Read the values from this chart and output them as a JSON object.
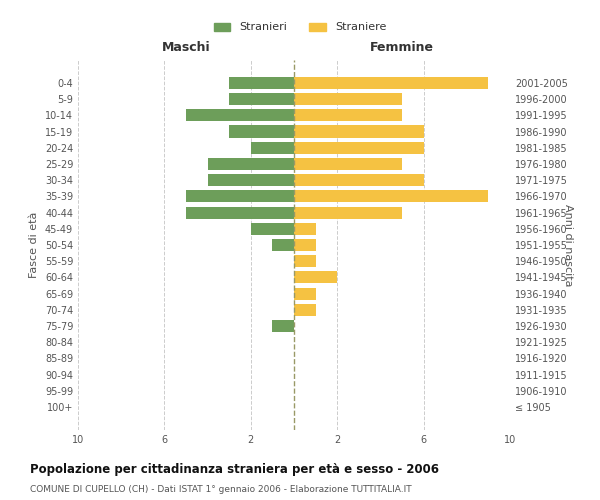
{
  "age_groups": [
    "100+",
    "95-99",
    "90-94",
    "85-89",
    "80-84",
    "75-79",
    "70-74",
    "65-69",
    "60-64",
    "55-59",
    "50-54",
    "45-49",
    "40-44",
    "35-39",
    "30-34",
    "25-29",
    "20-24",
    "15-19",
    "10-14",
    "5-9",
    "0-4"
  ],
  "birth_years": [
    "≤ 1905",
    "1906-1910",
    "1911-1915",
    "1916-1920",
    "1921-1925",
    "1926-1930",
    "1931-1935",
    "1936-1940",
    "1941-1945",
    "1946-1950",
    "1951-1955",
    "1956-1960",
    "1961-1965",
    "1966-1970",
    "1971-1975",
    "1976-1980",
    "1981-1985",
    "1986-1990",
    "1991-1995",
    "1996-2000",
    "2001-2005"
  ],
  "maschi": [
    0,
    0,
    0,
    0,
    0,
    1,
    0,
    0,
    0,
    0,
    1,
    2,
    5,
    5,
    4,
    4,
    2,
    3,
    5,
    3,
    3
  ],
  "femmine": [
    0,
    0,
    0,
    0,
    0,
    0,
    1,
    1,
    2,
    1,
    1,
    1,
    5,
    9,
    6,
    5,
    6,
    6,
    5,
    5,
    9
  ],
  "color_maschi": "#6d9e5a",
  "color_femmine": "#f5c242",
  "title": "Popolazione per cittadinanza straniera per età e sesso - 2006",
  "subtitle": "COMUNE DI CUPELLO (CH) - Dati ISTAT 1° gennaio 2006 - Elaborazione TUTTITALIA.IT",
  "left_label": "Maschi",
  "right_label": "Femmine",
  "ylabel_left": "Fasce di età",
  "ylabel_right": "Anni di nascita",
  "legend_maschi": "Stranieri",
  "legend_femmine": "Straniere",
  "xlim": 10,
  "background_color": "#ffffff",
  "bar_height": 0.75,
  "grid_color": "#cccccc",
  "text_color": "#555555"
}
